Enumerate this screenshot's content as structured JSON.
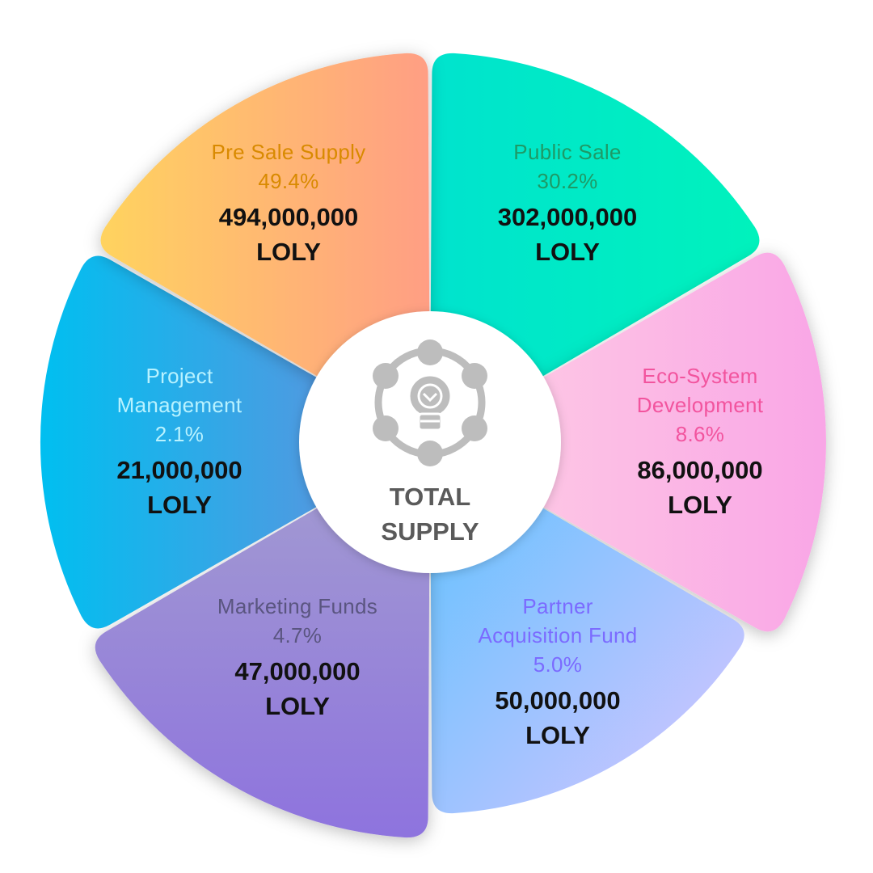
{
  "chart_data": {
    "type": "pie",
    "center_label_line1": "TOTAL",
    "center_label_line2": "SUPPLY",
    "center_icon": "bulb-network-icon",
    "unit": "LOLY",
    "slices": [
      {
        "id": "public-sale",
        "name_lines": [
          "Public Sale"
        ],
        "percent_label": "30.2%",
        "value": 302000000,
        "amount_label": "302,000,000",
        "unit_label": "LOLY",
        "color_start": "#00E3CE",
        "color_end": "#00F2BC",
        "label_color": "#1E9A66"
      },
      {
        "id": "eco-system-development",
        "name_lines": [
          "Eco-System",
          "Development"
        ],
        "percent_label": "8.6%",
        "value": 86000000,
        "amount_label": "86,000,000",
        "unit_label": "LOLY",
        "color_start": "#FFD1E4",
        "color_end": "#F9A6E6",
        "label_color": "#F2549E"
      },
      {
        "id": "partner-acquisition-fund",
        "name_lines": [
          "Partner",
          "Acquisition Fund"
        ],
        "percent_label": "5.0%",
        "value": 50000000,
        "amount_label": "50,000,000",
        "unit_label": "LOLY",
        "color_start": "#5EC2FF",
        "color_end": "#D9C4FF",
        "label_color": "#7B6BFF"
      },
      {
        "id": "marketing-funds",
        "name_lines": [
          "Marketing Funds"
        ],
        "percent_label": "4.7%",
        "value": 47000000,
        "amount_label": "47,000,000",
        "unit_label": "LOLY",
        "color_start": "#A49ED0",
        "color_end": "#8E73DE",
        "label_color": "#5A5580"
      },
      {
        "id": "project-management",
        "name_lines": [
          "Project",
          "Management"
        ],
        "percent_label": "2.1%",
        "value": 21000000,
        "amount_label": "21,000,000",
        "unit_label": "LOLY",
        "color_start": "#00BFF0",
        "color_end": "#6F8BDB",
        "label_color": "#B8F2FF"
      },
      {
        "id": "pre-sale-supply",
        "name_lines": [
          "Pre Sale Supply"
        ],
        "percent_label": "49.4%",
        "value": 494000000,
        "amount_label": "494,000,000",
        "unit_label": "LOLY",
        "color_start": "#FFD35F",
        "color_end": "#FF9E84",
        "label_color": "#D98A00"
      }
    ]
  }
}
